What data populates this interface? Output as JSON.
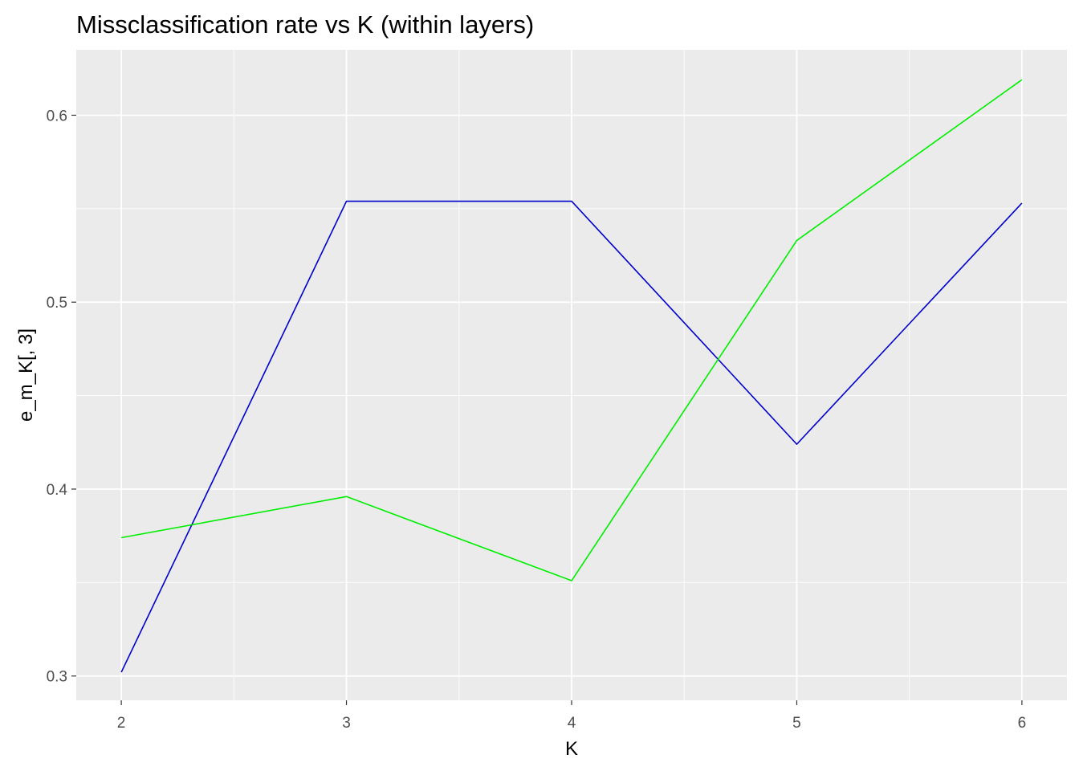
{
  "chart_data": {
    "type": "line",
    "title": "Missclassification rate vs K (within layers)",
    "xlabel": "K",
    "ylabel": "e_m_K[, 3]",
    "x": [
      2,
      3,
      4,
      5,
      6
    ],
    "xlim": [
      1.8,
      6.2
    ],
    "ylim": [
      0.287,
      0.635
    ],
    "x_ticks": [
      2,
      3,
      4,
      5,
      6
    ],
    "x_tick_labels": [
      "2",
      "3",
      "4",
      "5",
      "6"
    ],
    "y_ticks": [
      0.3,
      0.4,
      0.5,
      0.6
    ],
    "y_tick_labels": [
      "0.3",
      "0.4",
      "0.5",
      "0.6"
    ],
    "grid": true,
    "legend": "none",
    "series": [
      {
        "color": "#0000CD",
        "values": [
          0.302,
          0.554,
          0.554,
          0.424,
          0.553
        ]
      },
      {
        "color": "#00EE00",
        "values": [
          0.374,
          0.396,
          0.351,
          0.533,
          0.619
        ]
      }
    ]
  }
}
